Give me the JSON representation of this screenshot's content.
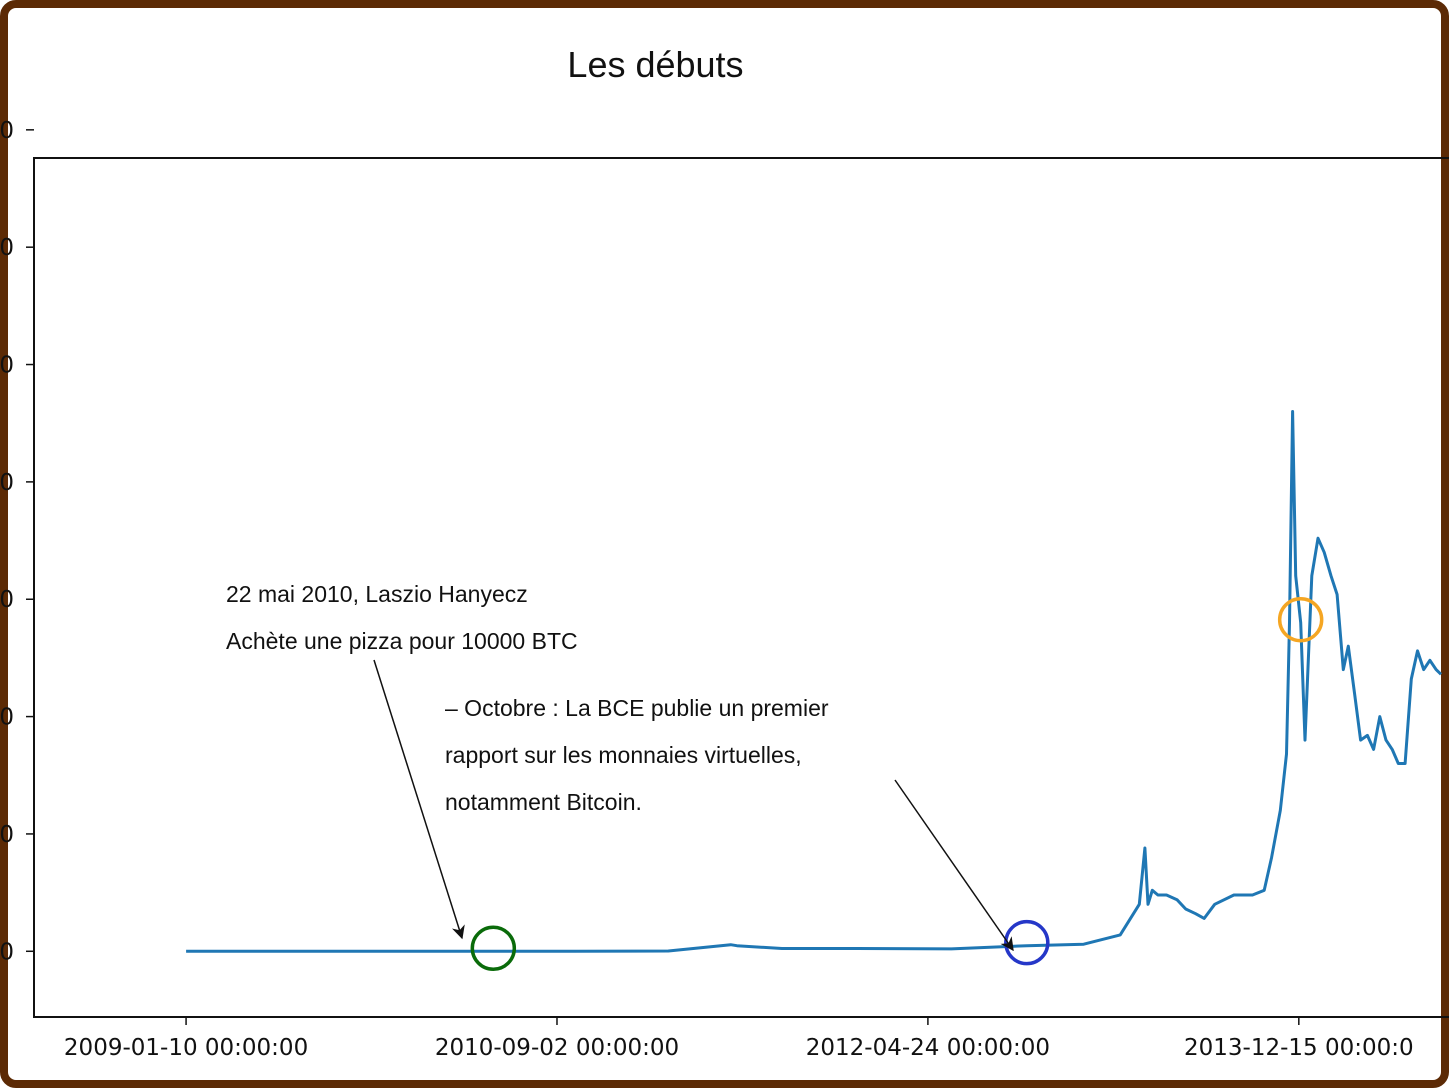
{
  "title": "Les débuts",
  "chart_data": {
    "type": "line",
    "title": "Les débuts",
    "xlabel": "",
    "ylabel": "",
    "x_tick_labels": [
      "2009-01-10 00:00:00",
      "2010-09-02 00:00:00",
      "2012-04-24 00:00:00",
      "2013-12-15 00:00:0"
    ],
    "x_ticks": [
      "2009-01-10",
      "2010-09-02",
      "2012-04-24",
      "2013-12-15"
    ],
    "xlim": [
      "2008-05-09",
      "2014-08-02"
    ],
    "y_tick_labels": [
      "0",
      "0",
      "0",
      "0",
      "0",
      "0",
      "0",
      "0"
    ],
    "series": [
      {
        "color": "#1f77b4",
        "x": [
          "2009-01-10",
          "2009-07-01",
          "2010-01-01",
          "2010-05-22",
          "2010-10-01",
          "2011-03-01",
          "2011-06-10",
          "2011-06-20",
          "2011-09-01",
          "2012-01-01",
          "2012-06-01",
          "2012-10-01",
          "2013-01-01",
          "2013-03-01",
          "2013-04-01",
          "2013-04-10",
          "2013-04-15",
          "2013-04-22",
          "2013-05-01",
          "2013-05-15",
          "2013-06-01",
          "2013-06-15",
          "2013-07-01",
          "2013-07-15",
          "2013-08-01",
          "2013-09-01",
          "2013-10-01",
          "2013-10-20",
          "2013-11-01",
          "2013-11-15",
          "2013-11-25",
          "2013-11-30",
          "2013-12-05",
          "2013-12-10",
          "2013-12-18",
          "2013-12-25",
          "2014-01-05",
          "2014-01-15",
          "2014-01-25",
          "2014-02-05",
          "2014-02-15",
          "2014-02-25",
          "2014-03-05",
          "2014-03-15",
          "2014-03-25",
          "2014-04-05",
          "2014-04-15",
          "2014-04-25",
          "2014-05-05",
          "2014-05-15",
          "2014-05-25",
          "2014-06-05",
          "2014-06-15",
          "2014-06-25",
          "2014-07-05",
          "2014-07-15",
          "2014-07-25",
          "2014-08-02"
        ],
        "y": [
          0,
          0,
          0,
          0,
          0,
          0.5,
          14,
          12,
          6,
          6,
          5,
          12,
          15,
          35,
          100,
          220,
          100,
          130,
          120,
          120,
          110,
          90,
          80,
          70,
          100,
          120,
          120,
          130,
          200,
          300,
          420,
          700,
          1150,
          800,
          700,
          450,
          800,
          880,
          850,
          800,
          760,
          600,
          650,
          550,
          450,
          460,
          430,
          500,
          450,
          430,
          400,
          400,
          580,
          640,
          600,
          620,
          600,
          590
        ],
        "ylim": [
          -140,
          1690
        ]
      }
    ],
    "annotations": [
      {
        "lines": [
          "22 mai 2010, Laszio Hanyecz",
          "Achète une pizza pour 10000 BTC"
        ],
        "target_date": "2010-05-22",
        "marker_color": "#0a6b0a"
      },
      {
        "lines": [
          "– Octobre : La BCE publie un premier",
          "rapport sur les monnaies virtuelles,",
          "notamment Bitcoin."
        ],
        "target_date": "2012-10-01",
        "marker_color": "#2537c8"
      },
      {
        "lines": [],
        "target_date": "2013-12-18",
        "marker_color": "#f5a623"
      }
    ],
    "grid": false,
    "legend": "none"
  }
}
